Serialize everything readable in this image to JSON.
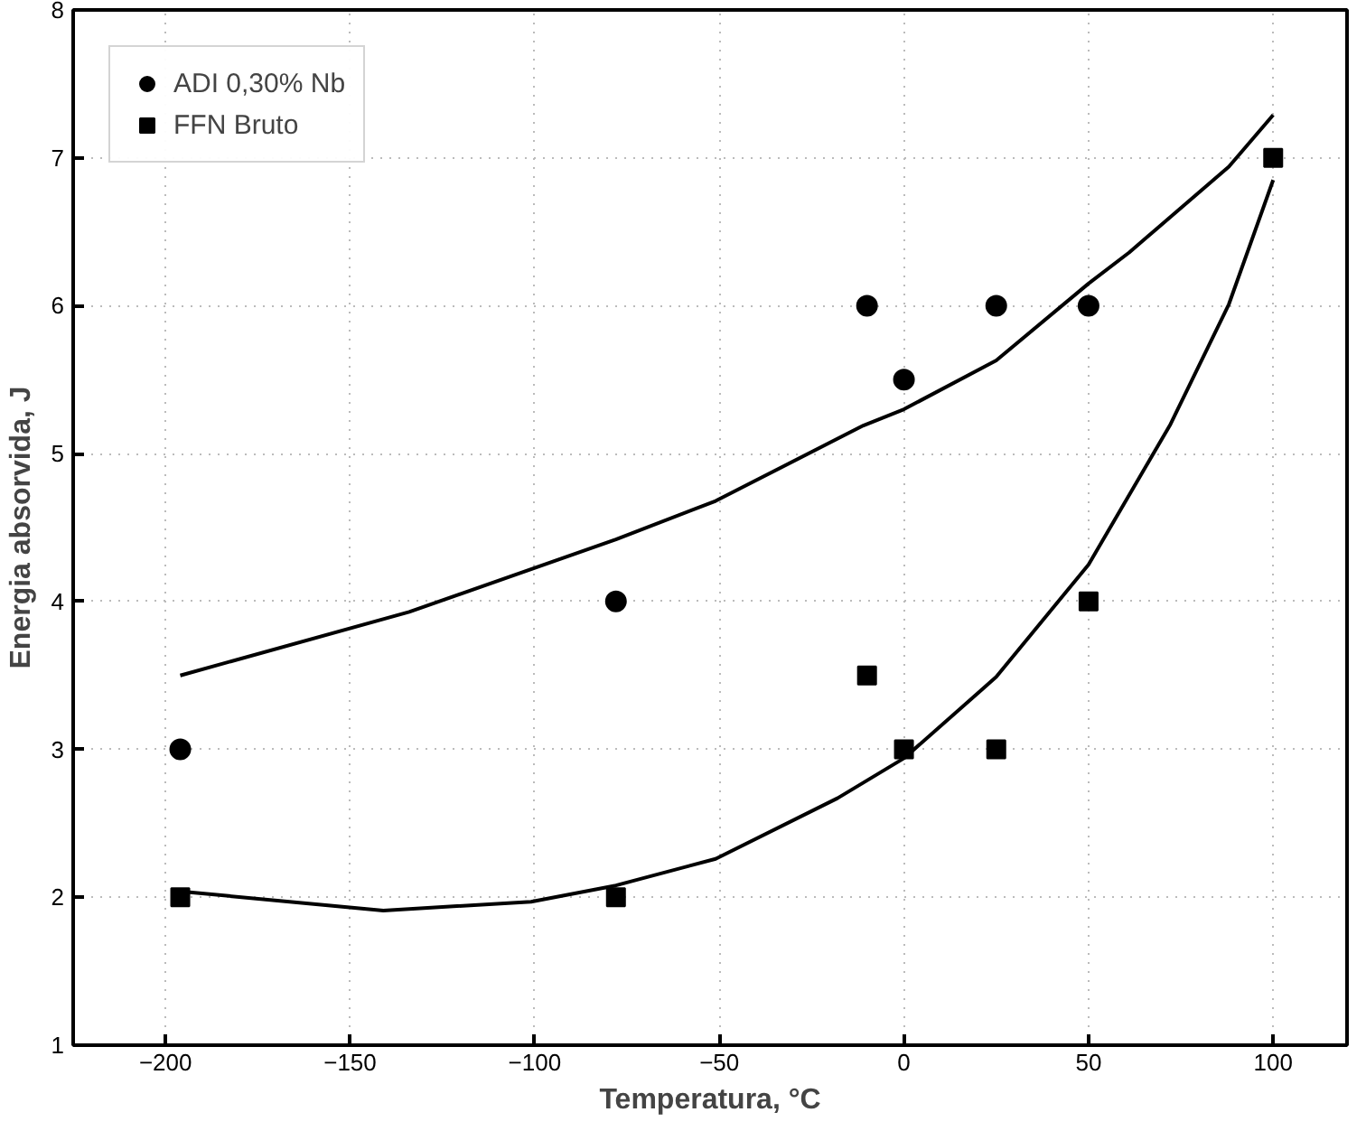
{
  "chart_data": {
    "type": "scatter",
    "xlabel": "Temperatura, °C",
    "ylabel": "Energia absorvida, J",
    "xlim": [
      -225,
      120
    ],
    "ylim": [
      1,
      8
    ],
    "xticks": [
      -200,
      -150,
      -100,
      -50,
      0,
      50,
      100
    ],
    "yticks": [
      1,
      2,
      3,
      4,
      5,
      6,
      7,
      8
    ],
    "grid": true,
    "legend": "top left",
    "series": [
      {
        "name": "ADI 0,30% Nb",
        "color": "#000000",
        "marker": "circle",
        "x": [
          -196,
          -78,
          -10,
          0,
          25,
          50
        ],
        "values": [
          3,
          4,
          6,
          5.5,
          6,
          6
        ]
      },
      {
        "name": "FFN Bruto",
        "color": "#000000",
        "marker": "square",
        "x": [
          -196,
          -78,
          -10,
          0,
          25,
          50,
          100
        ],
        "values": [
          2,
          2,
          3.5,
          3,
          3,
          4,
          7
        ]
      },
      {
        "type": "line",
        "color": "#000000",
        "line_style": "solid",
        "x": [
          -196,
          -134,
          -78,
          -51,
          -11,
          0,
          25,
          50,
          61,
          88,
          100
        ],
        "values": [
          3.5,
          3.93,
          4.42,
          4.68,
          5.19,
          5.3,
          5.63,
          6.15,
          6.36,
          6.94,
          7.29
        ]
      },
      {
        "type": "line",
        "color": "#000000",
        "line_style": "solid",
        "x": [
          -196,
          -141,
          -101,
          -78,
          -51,
          -18,
          0,
          25,
          50,
          72,
          88,
          100
        ],
        "values": [
          2.04,
          1.91,
          1.97,
          2.08,
          2.26,
          2.67,
          2.94,
          3.49,
          4.25,
          5.19,
          6.01,
          6.85
        ]
      }
    ]
  }
}
